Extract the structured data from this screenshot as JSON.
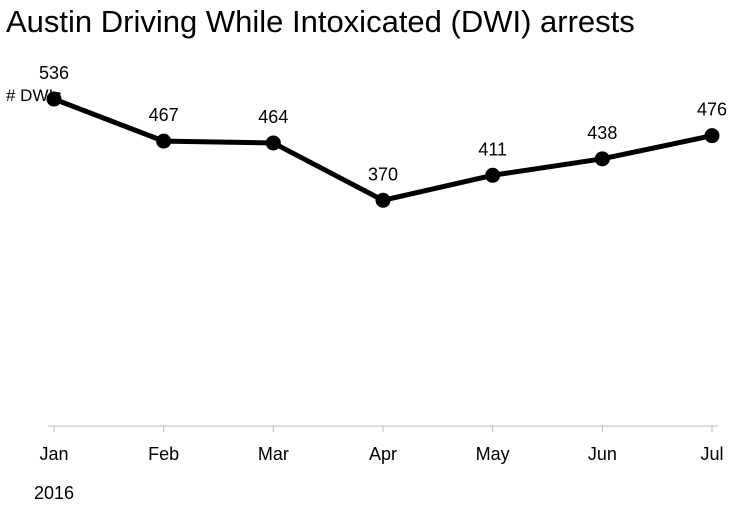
{
  "chart_data": {
    "type": "line",
    "title": "Austin Driving While Intoxicated (DWI) arrests",
    "ylabel": "# DWIs",
    "xlabel": "",
    "year_label": "2016",
    "categories": [
      "Jan",
      "Feb",
      "Mar",
      "Apr",
      "May",
      "Jun",
      "Jul"
    ],
    "values": [
      536,
      467,
      464,
      370,
      411,
      438,
      476
    ],
    "ylim": [
      0,
      600
    ],
    "grid": false,
    "line_color": "#000000",
    "axis_color": "#bbbbbb"
  }
}
